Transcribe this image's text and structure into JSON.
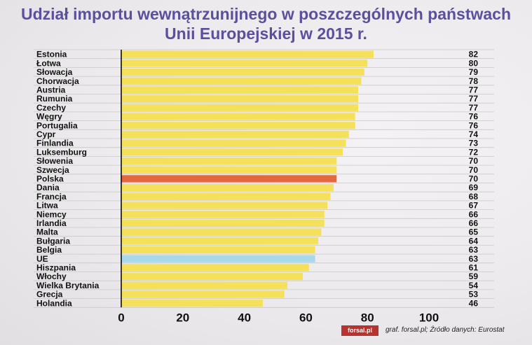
{
  "chart_data": {
    "type": "bar",
    "orientation": "horizontal",
    "title": "Udział importu wewnątrzunijnego w poszczególnych państwach",
    "title_line2": "Unii Europejskiej w 2015 r.",
    "categories": [
      "Estonia",
      "Łotwa",
      "Słowacja",
      "Chorwacja",
      "Austria",
      "Rumunia",
      "Czechy",
      "Węgry",
      "Portugalia",
      "Cypr",
      "Finlandia",
      "Luksemburg",
      "Słowenia",
      "Szwecja",
      "Polska",
      "Dania",
      "Francja",
      "Litwa",
      "Niemcy",
      "Irlandia",
      "Malta",
      "Bułgaria",
      "Belgia",
      "UE",
      "Hiszpania",
      "Włochy",
      "Wielka Brytania",
      "Grecja",
      "Holandia"
    ],
    "values": [
      82,
      80,
      79,
      78,
      77,
      77,
      77,
      76,
      76,
      74,
      73,
      72,
      70,
      70,
      70,
      69,
      68,
      67,
      66,
      66,
      65,
      64,
      63,
      63,
      61,
      59,
      54,
      53,
      46
    ],
    "value_labels": [
      "82",
      "80",
      "79",
      "78",
      "77",
      "77",
      "77",
      "76",
      "76",
      "74",
      "73",
      "72",
      "70",
      "70",
      "70",
      "69",
      "68",
      "67",
      "66",
      "66",
      "65",
      "64",
      "63",
      "63",
      "61",
      "59",
      "54",
      "53",
      "46"
    ],
    "xlim": [
      0,
      100
    ],
    "xticks": [
      0,
      20,
      40,
      60,
      80,
      100
    ],
    "xtick_labels": [
      "0",
      "20",
      "40",
      "60",
      "80",
      "100"
    ],
    "grid": true,
    "colors": {
      "default": "#f5e05a",
      "highlight_poland": "#e5673c",
      "highlight_eu": "#a9d8e8"
    },
    "highlights": {
      "Polska": "highlight_poland",
      "UE": "highlight_eu"
    }
  },
  "footer": {
    "logo": "forsal.pl",
    "source": "graf. forsal.pl; Źródło danych: Eurostat"
  }
}
